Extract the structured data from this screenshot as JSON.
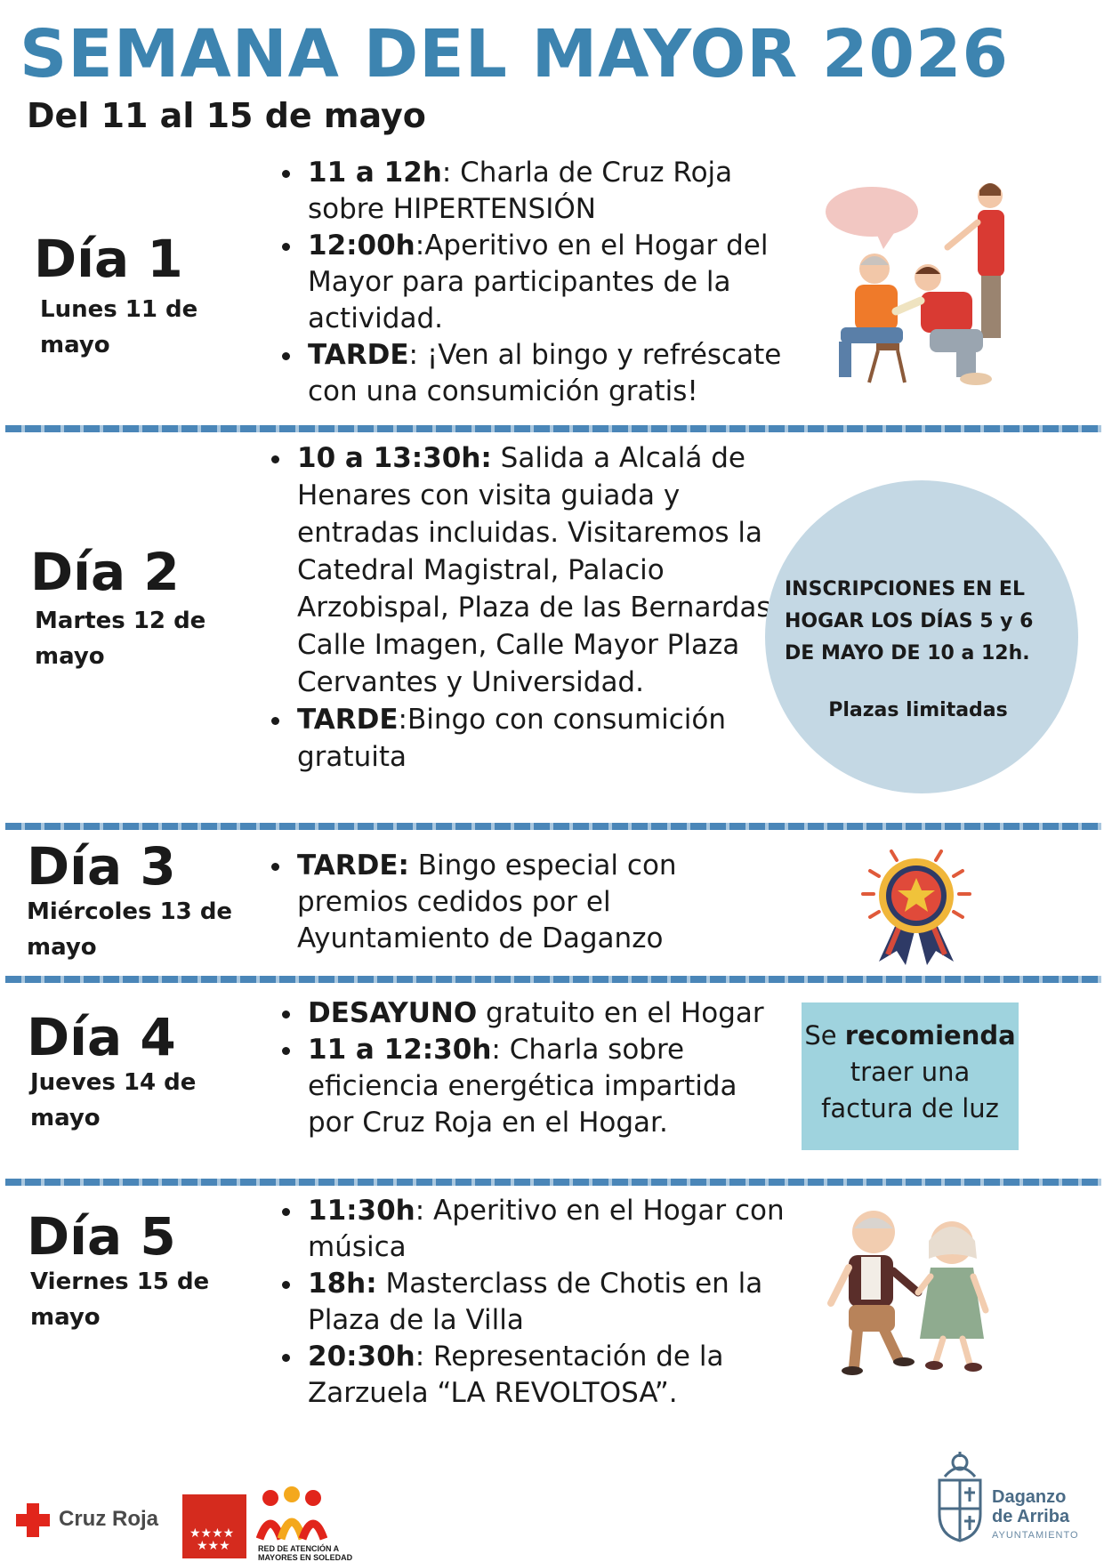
{
  "header": {
    "title": "SEMANA DEL MAYOR 2026",
    "subtitle": "Del 11 al 15 de mayo"
  },
  "days": [
    {
      "title": "Día 1",
      "date": "Lunes 11 de mayo",
      "activities": [
        {
          "strong": "11 a 12h",
          "text": ": Charla de Cruz Roja sobre HIPERTENSIÓN"
        },
        {
          "strong": "12:00h",
          "text": ":Aperitivo en el Hogar del Mayor para participantes de la actividad."
        },
        {
          "strong": "TARDE",
          "text": ": ¡Ven al bingo y refréscate con una consumición gratis!"
        }
      ]
    },
    {
      "title": "Día 2",
      "date": "Martes 12 de mayo",
      "activities": [
        {
          "strong": "10 a 13:30h:",
          "text": " Salida a Alcalá de Henares con visita guiada y entradas incluidas. Visitaremos la Catedral Magistral, Palacio Arzobispal, Plaza de las Bernardas, Calle Imagen, Calle Mayor Plaza Cervantes y Universidad."
        },
        {
          "strong": "TARDE",
          "text": ":Bingo con consumición gratuita"
        }
      ]
    },
    {
      "title": "Día 3",
      "date": "Miércoles 13 de mayo",
      "activities": [
        {
          "strong": "TARDE:",
          "text": " Bingo especial con premios cedidos por el Ayuntamiento de Daganzo"
        }
      ]
    },
    {
      "title": "Día 4",
      "date": "Jueves 14 de mayo",
      "activities": [
        {
          "strong": "DESAYUNO",
          "text": " gratuito en el Hogar"
        },
        {
          "strong": "11 a 12:30h",
          "text": ": Charla sobre eficiencia energética impartida por Cruz Roja en el Hogar."
        }
      ]
    },
    {
      "title": "Día 5",
      "date": "Viernes 15 de mayo",
      "activities": [
        {
          "strong": "11:30h",
          "text": ": Aperitivo en el Hogar con música"
        },
        {
          "strong": "18h:",
          "text": " Masterclass de Chotis en la Plaza de la Villa"
        },
        {
          "strong": "20:30h",
          "text": ": Representación de la Zarzuela “LA REVOLTOSA”."
        }
      ]
    }
  ],
  "inscriptions": {
    "text": "INSCRIPCIONES EN EL HOGAR LOS DÍAS 5 y 6 DE MAYO DE 10 a 12h.",
    "note": "Plazas limitadas"
  },
  "recommendation": {
    "pre": "Se ",
    "strong": "recomienda",
    "post": "traer una factura de luz"
  },
  "footer": {
    "cruz_roja": "Cruz Roja",
    "red_atencion": "RED DE ATENCIÓN A MAYORES EN SOLEDAD",
    "daganzo_name": "Daganzo de Arriba",
    "daganzo_sub": "AYUNTAMIENTO"
  },
  "colors": {
    "title": "#3d84b0",
    "divider": "#4a86b8",
    "circle": "#c4d8e4",
    "note": "#9fd3de",
    "cruz_roja": "#e1251b"
  },
  "icons": [
    "nurse-care-illustration",
    "award-ribbon-icon",
    "dancing-couple-illustration",
    "cruz-roja-logo",
    "comunidad-madrid-logo",
    "red-atencion-logo",
    "daganzo-crest-logo"
  ]
}
